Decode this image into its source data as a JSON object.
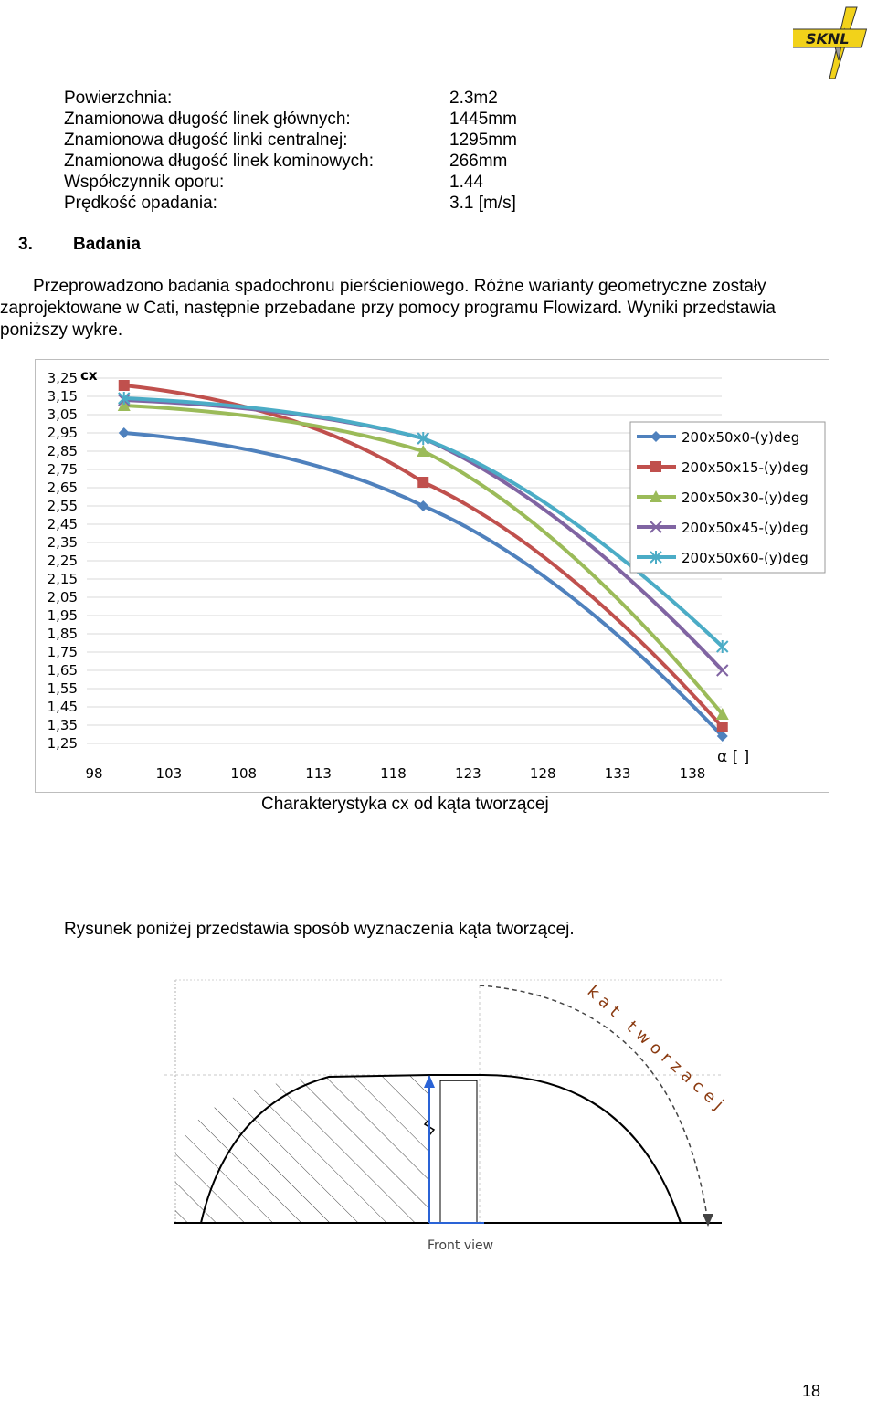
{
  "logo": {
    "text": "SKNL"
  },
  "specs": [
    {
      "label": "Powierzchnia:",
      "value": "2.3m2"
    },
    {
      "label": "Znamionowa długość linek głównych:",
      "value": "1445mm"
    },
    {
      "label": "Znamionowa długość linki centralnej:",
      "value": "1295mm"
    },
    {
      "label": "Znamionowa długość linek kominowych:",
      "value": "266mm"
    },
    {
      "label": "Współczynnik oporu:",
      "value": "1.44"
    },
    {
      "label": "Prędkość opadania:",
      "value": "3.1 [m/s]"
    }
  ],
  "section": {
    "number": "3.",
    "title": "Badania"
  },
  "paragraph": {
    "line1": "Przeprowadzono badania spadochronu pierścieniowego. Różne warianty geometryczne zostały",
    "line2": "zaprojektowane w Cati, następnie przebadane przy pomocy programu Flowizard. Wyniki przedstawia",
    "line3": "poniższy wykre."
  },
  "chart_data": {
    "type": "line",
    "title": "",
    "caption": "Charakterystyka cx od kąta tworzącej",
    "ylabel": "cx",
    "xlabel": "α [ ]",
    "ylim": [
      1.25,
      3.25
    ],
    "xlim": [
      98,
      138
    ],
    "yticks": [
      "3,25",
      "3,15",
      "3,05",
      "2,95",
      "2,85",
      "2,75",
      "2,65",
      "2,55",
      "2,45",
      "2,35",
      "2,25",
      "2,15",
      "2,05",
      "1,95",
      "1,85",
      "1,75",
      "1,65",
      "1,55",
      "1,45",
      "1,35",
      "1,25"
    ],
    "xticks": [
      "98",
      "103",
      "108",
      "113",
      "118",
      "123",
      "128",
      "133",
      "138"
    ],
    "grid": "horizontal",
    "legend_position": "right",
    "series": [
      {
        "name": "200x50x0-(y)deg",
        "color": "#4F81BD",
        "marker": "diamond",
        "x": [
          100,
          120,
          140
        ],
        "y": [
          2.95,
          2.55,
          1.29
        ]
      },
      {
        "name": "200x50x15-(y)deg",
        "color": "#C0504D",
        "marker": "square",
        "x": [
          100,
          120,
          140
        ],
        "y": [
          3.21,
          2.68,
          1.34
        ]
      },
      {
        "name": "200x50x30-(y)deg",
        "color": "#9BBB59",
        "marker": "triangle",
        "x": [
          100,
          120,
          140
        ],
        "y": [
          3.1,
          2.85,
          1.41
        ]
      },
      {
        "name": "200x50x45-(y)deg",
        "color": "#8064A2",
        "marker": "x",
        "x": [
          100,
          120,
          140
        ],
        "y": [
          3.13,
          2.92,
          1.65
        ]
      },
      {
        "name": "200x50x60-(y)deg",
        "color": "#4BACC6",
        "marker": "star",
        "x": [
          100,
          120,
          140
        ],
        "y": [
          3.14,
          2.92,
          1.78
        ]
      }
    ]
  },
  "figure_text": "Rysunek poniżej przedstawia sposób wyznaczenia kąta tworzącej.",
  "drawing": {
    "angle_label": "kat tworzacej",
    "view_label": "Front view"
  },
  "page_number": "18"
}
